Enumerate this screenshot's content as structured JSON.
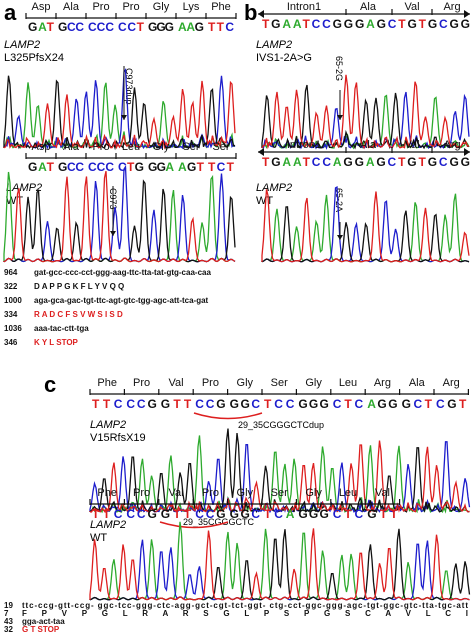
{
  "colors": {
    "A": "#2eaa2e",
    "C": "#1d1dcc",
    "G": "#111111",
    "T": "#dd1f1f",
    "red": "#dd1f1f",
    "black": "#111111"
  },
  "panels": [
    {
      "label": "a",
      "sub": [
        {
          "codons": [
            {
              "aa": "Asp",
              "nt": "GAT"
            },
            {
              "aa": "Ala",
              "nt": "GCC"
            },
            {
              "aa": "Pro",
              "nt": "CCC"
            },
            {
              "aa": "Pro",
              "nt": "CCT"
            },
            {
              "aa": "Gly",
              "nt": "GGG"
            },
            {
              "aa": "Lys",
              "nt": "AAG"
            },
            {
              "aa": "Phe",
              "nt": "TTC"
            }
          ],
          "gene": "LAMP2",
          "mutation": "L325PfsX24",
          "annotation": "C973dup"
        },
        {
          "codons": [
            {
              "aa": "Asp",
              "nt": "GAT"
            },
            {
              "aa": "Ala",
              "nt": "GCC"
            },
            {
              "aa": "Pro",
              "nt": "CCC"
            },
            {
              "aa": "Leu",
              "nt": "CTG"
            },
            {
              "aa": "Gly",
              "nt": "GGA"
            },
            {
              "aa": "Ser",
              "nt": "AGT"
            },
            {
              "aa": "Ser",
              "nt": "TCT"
            }
          ],
          "gene": "LAMP2",
          "mutation": "WT",
          "annotation": "C973"
        }
      ],
      "sequence": [
        {
          "num": "964",
          "text": "gat-gcc-ccc-cct-ggg-aag-ttc-tta-tat-gtg-caa-caa",
          "color": "black"
        },
        {
          "num": "322",
          "text": "D   A   P   P   G   K   F   L   Y   V   Q   Q",
          "color": "mixed",
          "redFrom": 3
        },
        {
          "num": "1000",
          "text": "aga-gca-gac-tgt-ttc-agt-gtc-tgg-agc-att-tca-gat",
          "color": "black"
        },
        {
          "num": "334",
          "text": "R   A   D   C   F   S   V   W   S   I   S   D",
          "color": "red"
        },
        {
          "num": "1036",
          "text": "aaa-tac-ctt-tga",
          "color": "black"
        },
        {
          "num": "346",
          "text": "K   Y   L   STOP",
          "color": "red"
        }
      ]
    },
    {
      "label": "b",
      "sub": [
        {
          "header": {
            "intron": "Intron1",
            "exon": [
              "Ala",
              "Val",
              "Arg"
            ]
          },
          "nt": "TGAATCCGGGAGCTGTGCGG",
          "gene": "LAMP2",
          "mutation": "IVS1-2A>G",
          "annotation": "65-2G"
        },
        {
          "header": {
            "intron": "Intron1",
            "exon": [
              "Ala",
              "Val",
              "Arg"
            ]
          },
          "nt": "TGAATCCAGGAGCTGTGCGG",
          "gene": "LAMP2",
          "mutation": "WT",
          "annotation": "65-2A"
        }
      ]
    },
    {
      "label": "c",
      "sub": [
        {
          "codons": [
            {
              "aa": "Phe",
              "nt": "TTC"
            },
            {
              "aa": "Pro",
              "nt": "CCG"
            },
            {
              "aa": "Val",
              "nt": "GTT"
            },
            {
              "aa": "Pro",
              "nt": "CCG"
            },
            {
              "aa": "Gly",
              "nt": "GGC"
            },
            {
              "aa": "Ser",
              "nt": "TCC"
            },
            {
              "aa": "Gly",
              "nt": "GGG"
            },
            {
              "aa": "Leu",
              "nt": "CTC"
            },
            {
              "aa": "Arg",
              "nt": "AGG"
            },
            {
              "aa": "Ala",
              "nt": "GCT"
            },
            {
              "aa": "Arg",
              "nt": "CGT"
            }
          ],
          "gene": "LAMP2",
          "mutation": "V15RfsX19",
          "annotation": "29_35CGGGCTCdup"
        },
        {
          "codons": [
            {
              "aa": "Phe",
              "nt": "TTC"
            },
            {
              "aa": "Pro",
              "nt": "CCG"
            },
            {
              "aa": "Val",
              "nt": "GTT"
            },
            {
              "aa": "Pro",
              "nt": "CCG"
            },
            {
              "aa": "Gly",
              "nt": "GGC"
            },
            {
              "aa": "Ser",
              "nt": "TCA"
            },
            {
              "aa": "Gly",
              "nt": "GGG"
            },
            {
              "aa": "Leu",
              "nt": "CTC"
            },
            {
              "aa": "Val",
              "nt": "GTT"
            }
          ],
          "gene": "LAMP2",
          "mutation": "WT",
          "annotation": "29_35CGGGCTC"
        }
      ],
      "sequence": [
        {
          "num": "19",
          "text": "ttc-ccg-gtt-ccg- ggc-tcc-ggg-ctc-agg-gct-cgt-tct-ggt- ctg-cct-ggc-ggg-agc-tgt-ggc-gtc-tta-tgc-att",
          "color": "mixed-c"
        },
        {
          "num": "7",
          "text": "F  P  V  P   G   L   R   A   R   S   G   L   P   S   P   G   S   C   A   V   L   C   I",
          "color": "mixed",
          "redFrom": 6
        },
        {
          "num": "43",
          "text": "gga-act-taa",
          "color": "black"
        },
        {
          "num": "32",
          "text": "G   T   STOP",
          "color": "red"
        }
      ]
    }
  ]
}
